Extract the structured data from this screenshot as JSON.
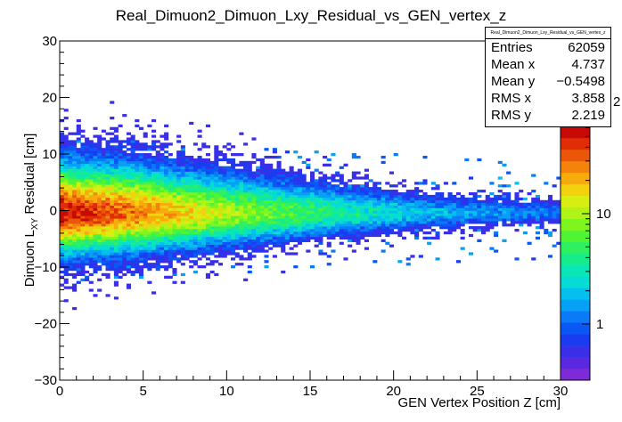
{
  "chart_data": {
    "type": "heatmap",
    "title": "Real_Dimuon2_Dimuon_Lxy_Residual_vs_GEN_vertex_z",
    "xlabel": "GEN Vertex Position Z [cm]",
    "ylabel_main": "Dimuon L",
    "ylabel_sub": "XY",
    "ylabel_tail": " Residual [cm]",
    "xlim": [
      0,
      30
    ],
    "ylim": [
      -30,
      30
    ],
    "x_ticks": [
      "0",
      "5",
      "10",
      "15",
      "20",
      "25",
      "30"
    ],
    "y_ticks": [
      "−30",
      "−20",
      "−10",
      "0",
      "10",
      "20",
      "30"
    ],
    "z_scale": "log",
    "z_ticks": [
      "1",
      "10"
    ],
    "z_partial_label": "2",
    "grid": false,
    "colormap": [
      "#7d2bd6",
      "#5a28e0",
      "#3a2fe8",
      "#1a3cf0",
      "#0b57f5",
      "#0a7af8",
      "#06a0f5",
      "#05c0ee",
      "#06dbd6",
      "#0ae6b4",
      "#17ec8d",
      "#2ef060",
      "#50f435",
      "#7ff51e",
      "#aff416",
      "#d7ee12",
      "#f2d20e",
      "#f7ab0c",
      "#f3830a",
      "#eb5708",
      "#e02d06",
      "#c80a06"
    ],
    "density_profile": [
      {
        "z": 0,
        "core": 21,
        "sigma": 6.0
      },
      {
        "z": 5,
        "core": 18,
        "sigma": 5.5
      },
      {
        "z": 10,
        "core": 14,
        "sigma": 4.5
      },
      {
        "z": 15,
        "core": 11,
        "sigma": 3.5
      },
      {
        "z": 20,
        "core": 8,
        "sigma": 2.5
      },
      {
        "z": 25,
        "core": 6,
        "sigma": 1.8
      },
      {
        "z": 30,
        "core": 5,
        "sigma": 1.5
      }
    ],
    "stats": {
      "name": "Real_Dimuon2_Dimuon_Lxy_Residual_vs_GEN_vertex_z",
      "rows": [
        {
          "key": "Entries",
          "value": "62059"
        },
        {
          "key": "Mean x",
          "value": "4.737"
        },
        {
          "key": "Mean y",
          "value": "−0.5498"
        },
        {
          "key": "RMS x",
          "value": "3.858"
        },
        {
          "key": "RMS y",
          "value": "2.219"
        }
      ]
    }
  }
}
